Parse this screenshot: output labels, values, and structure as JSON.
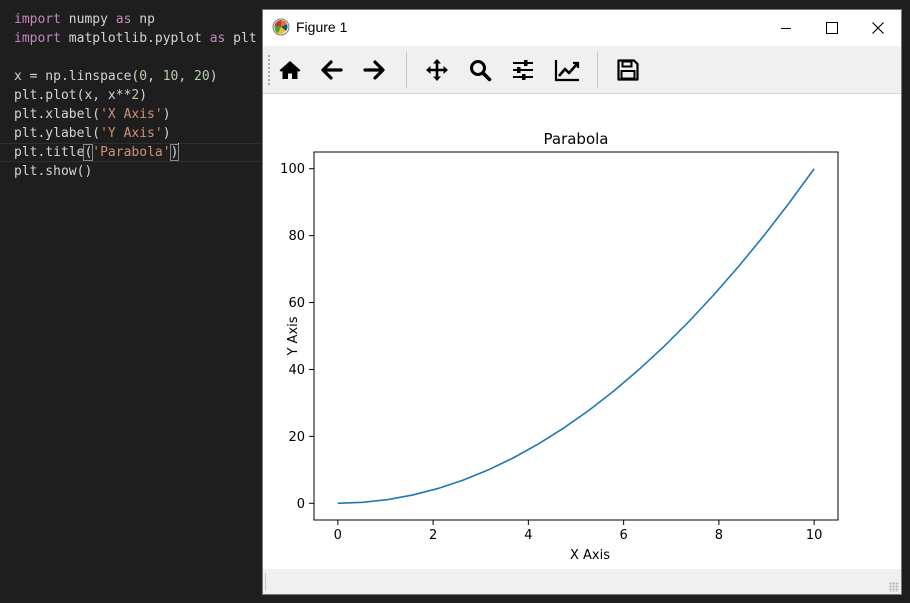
{
  "editor": {
    "lines": [
      [
        {
          "t": "import",
          "c": "kw"
        },
        {
          "t": " numpy "
        },
        {
          "t": "as",
          "c": "kw"
        },
        {
          "t": " np"
        }
      ],
      [
        {
          "t": "import",
          "c": "kw"
        },
        {
          "t": " matplotlib.pyplot "
        },
        {
          "t": "as",
          "c": "kw"
        },
        {
          "t": " plt"
        }
      ],
      [],
      [
        {
          "t": "x = np.linspace("
        },
        {
          "t": "0",
          "c": "num"
        },
        {
          "t": ", "
        },
        {
          "t": "10",
          "c": "num"
        },
        {
          "t": ", "
        },
        {
          "t": "20",
          "c": "num"
        },
        {
          "t": ")"
        }
      ],
      [
        {
          "t": "plt.plot(x, x**"
        },
        {
          "t": "2",
          "c": "num"
        },
        {
          "t": ")"
        }
      ],
      [
        {
          "t": "plt.xlabel("
        },
        {
          "t": "'X Axis'",
          "c": "str"
        },
        {
          "t": ")"
        }
      ],
      [
        {
          "t": "plt.ylabel("
        },
        {
          "t": "'Y Axis'",
          "c": "str"
        },
        {
          "t": ")"
        }
      ],
      [
        {
          "t": "plt.title"
        },
        {
          "t": "(",
          "c": "brk"
        },
        {
          "t": "'Parabola'",
          "c": "str"
        },
        {
          "t": ")",
          "c": "brk"
        }
      ],
      [
        {
          "t": "plt.show()"
        }
      ]
    ]
  },
  "window": {
    "title": "Figure 1",
    "icons": {
      "app": "matplotlib-logo-icon",
      "minimize": "minimize-icon",
      "maximize": "maximize-icon",
      "close": "close-icon"
    }
  },
  "toolbar": {
    "buttons": [
      {
        "name": "home-button",
        "icon": "home-icon"
      },
      {
        "name": "back-button",
        "icon": "arrow-left-icon"
      },
      {
        "name": "forward-button",
        "icon": "arrow-right-icon"
      },
      {
        "name": "pan-button",
        "icon": "move-icon"
      },
      {
        "name": "zoom-button",
        "icon": "magnifier-icon"
      },
      {
        "name": "subplots-button",
        "icon": "sliders-icon"
      },
      {
        "name": "edit-axis-button",
        "icon": "line-chart-icon"
      },
      {
        "name": "save-button",
        "icon": "floppy-disk-icon"
      }
    ]
  },
  "colors": {
    "line": "#1f77b4",
    "editor_bg": "#1e1e1e",
    "keyword": "#c586c0",
    "string": "#ce9178",
    "number": "#b5cea8"
  },
  "chart_data": {
    "type": "line",
    "title": "Parabola",
    "xlabel": "X Axis",
    "ylabel": "Y Axis",
    "xlim": [
      -0.5,
      10.5
    ],
    "ylim": [
      -5,
      105
    ],
    "xticks": [
      0,
      2,
      4,
      6,
      8,
      10
    ],
    "yticks": [
      0,
      20,
      40,
      60,
      80,
      100
    ],
    "grid": false,
    "series": [
      {
        "x": [
          0,
          0.5263,
          1.0526,
          1.5789,
          2.1053,
          2.6316,
          3.1579,
          3.6842,
          4.2105,
          4.7368,
          5.2632,
          5.7895,
          6.3158,
          6.8421,
          7.3684,
          7.8947,
          8.4211,
          8.9474,
          9.4737,
          10
        ],
        "y": [
          0,
          0.277,
          1.108,
          2.493,
          4.432,
          6.925,
          9.972,
          13.573,
          17.729,
          22.438,
          27.701,
          33.518,
          39.889,
          46.814,
          54.294,
          62.327,
          70.914,
          80.055,
          89.751,
          100
        ]
      }
    ]
  }
}
